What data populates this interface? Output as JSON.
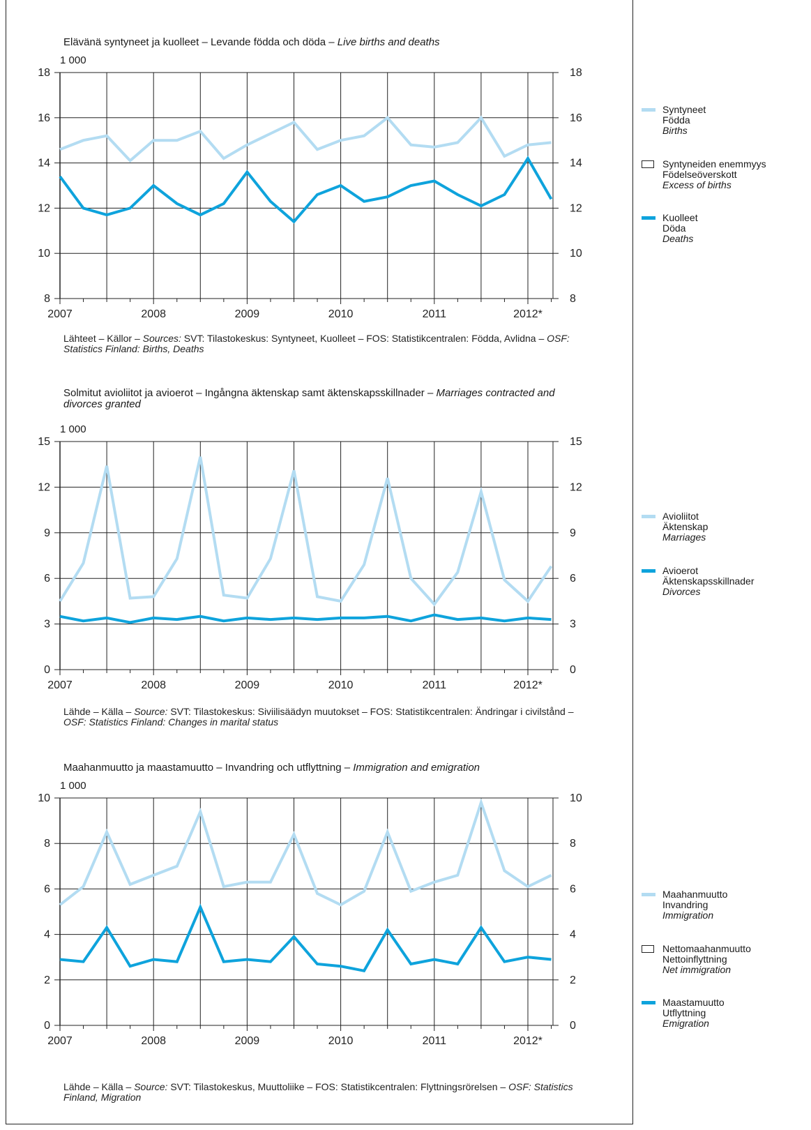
{
  "colors": {
    "light": "#b3dcf2",
    "dark": "#0ea3dc"
  },
  "x_tick_labels": [
    "2007",
    "2008",
    "2009",
    "2010",
    "2011",
    "2012*"
  ],
  "panels": [
    {
      "title_plain": "Elävänä syntyneet ja kuolleet – Levande födda och döda – ",
      "title_italic": "Live births and deaths",
      "unit": "1 000",
      "source_plain1": "Lähteet – Källor – ",
      "source_italic1": "Sources:",
      "source_plain2": " SVT: Tilastokeskus: Syntyneet, Kuolleet – FOS: Statistikcentralen: Födda, Avlidna – ",
      "source_italic2": "OSF: Statistics Finland: Births, Deaths",
      "legend": [
        {
          "kind": "line",
          "series": 0,
          "fi": "Syntyneet",
          "sv": "Födda",
          "en": "Births"
        },
        {
          "kind": "box",
          "fi": "Syntyneiden enemmyys",
          "sv": "Födelseöverskott",
          "en": "Excess of births"
        },
        {
          "kind": "line",
          "series": 1,
          "fi": "Kuolleet",
          "sv": "Döda",
          "en": "Deaths"
        }
      ]
    },
    {
      "title_plain": "Solmitut avioliitot ja avioerot – Ingångna äktenskap samt äktenskapsskillnader – ",
      "title_italic": "Marriages contracted and divorces granted",
      "unit": "1 000",
      "source_plain1": "Lähde – Källa – ",
      "source_italic1": "Source:",
      "source_plain2": " SVT: Tilastokeskus: Siviilisäädyn muutokset – FOS: Statistikcentralen: Ändringar i civilstånd – ",
      "source_italic2": "OSF: Statistics Finland: Changes in marital status",
      "legend": [
        {
          "kind": "line",
          "series": 0,
          "fi": "Avioliitot",
          "sv": "Äktenskap",
          "en": "Marriages"
        },
        {
          "kind": "line",
          "series": 1,
          "fi": "Avioerot",
          "sv": "Äktenskapsskillnader",
          "en": "Divorces"
        }
      ]
    },
    {
      "title_plain": "Maahanmuutto ja maastamuutto – Invandring och utflyttning – ",
      "title_italic": "Immigration and emigration",
      "unit": "1 000",
      "source_plain1": "Lähde – Källa – ",
      "source_italic1": "Source:",
      "source_plain2": " SVT: Tilastokeskus, Muuttoliike – FOS: Statistikcentralen: Flyttningsrörelsen – ",
      "source_italic2": "OSF: Statistics Finland, Migration",
      "legend": [
        {
          "kind": "line",
          "series": 0,
          "fi": "Maahanmuutto",
          "sv": "Invandring",
          "en": "Immigration"
        },
        {
          "kind": "box",
          "fi": "Nettomaahanmuutto",
          "sv": "Nettoinflyttning",
          "en": "Net immigration"
        },
        {
          "kind": "line",
          "series": 1,
          "fi": "Maastamuutto",
          "sv": "Utflyttning",
          "en": "Emigration"
        }
      ]
    }
  ],
  "chart_data": [
    {
      "type": "line",
      "x": [
        "2007 Q1",
        "2007 Q2",
        "2007 Q3",
        "2007 Q4",
        "2008 Q1",
        "2008 Q2",
        "2008 Q3",
        "2008 Q4",
        "2009 Q1",
        "2009 Q2",
        "2009 Q3",
        "2009 Q4",
        "2010 Q1",
        "2010 Q2",
        "2010 Q3",
        "2010 Q4",
        "2011 Q1",
        "2011 Q2",
        "2011 Q3",
        "2011 Q4",
        "2012 Q1",
        "2012 Q2"
      ],
      "ylim": [
        8,
        18
      ],
      "yticks": [
        8,
        10,
        12,
        14,
        16,
        18
      ],
      "series": [
        {
          "name": "Syntyneet",
          "values": [
            14.6,
            15.0,
            15.2,
            14.1,
            15.0,
            15.0,
            15.4,
            14.2,
            14.8,
            15.3,
            15.8,
            14.6,
            15.0,
            15.2,
            16.0,
            14.8,
            14.7,
            14.9,
            16.0,
            14.3,
            14.8,
            14.9
          ]
        },
        {
          "name": "Kuolleet",
          "values": [
            13.4,
            12.0,
            11.7,
            12.0,
            13.0,
            12.2,
            11.7,
            12.2,
            13.6,
            12.3,
            11.4,
            12.6,
            13.0,
            12.3,
            12.5,
            13.0,
            13.2,
            12.6,
            12.1,
            12.6,
            14.2,
            12.4
          ]
        }
      ]
    },
    {
      "type": "line",
      "x": [
        "2007 Q1",
        "2007 Q2",
        "2007 Q3",
        "2007 Q4",
        "2008 Q1",
        "2008 Q2",
        "2008 Q3",
        "2008 Q4",
        "2009 Q1",
        "2009 Q2",
        "2009 Q3",
        "2009 Q4",
        "2010 Q1",
        "2010 Q2",
        "2010 Q3",
        "2010 Q4",
        "2011 Q1",
        "2011 Q2",
        "2011 Q3",
        "2011 Q4",
        "2012 Q1",
        "2012 Q2"
      ],
      "ylim": [
        0,
        15
      ],
      "yticks": [
        0,
        3,
        6,
        9,
        12,
        15
      ],
      "series": [
        {
          "name": "Avioliitot",
          "values": [
            4.5,
            7.0,
            13.4,
            4.7,
            4.8,
            7.3,
            14.0,
            4.9,
            4.7,
            7.3,
            13.1,
            4.8,
            4.5,
            6.9,
            12.6,
            6.0,
            4.3,
            6.4,
            11.7,
            5.9,
            4.5,
            6.8
          ]
        },
        {
          "name": "Avioerot",
          "values": [
            3.5,
            3.2,
            3.4,
            3.1,
            3.4,
            3.3,
            3.5,
            3.2,
            3.4,
            3.3,
            3.4,
            3.3,
            3.4,
            3.4,
            3.5,
            3.2,
            3.6,
            3.3,
            3.4,
            3.2,
            3.4,
            3.3
          ]
        }
      ]
    },
    {
      "type": "line",
      "x": [
        "2007 Q1",
        "2007 Q2",
        "2007 Q3",
        "2007 Q4",
        "2008 Q1",
        "2008 Q2",
        "2008 Q3",
        "2008 Q4",
        "2009 Q1",
        "2009 Q2",
        "2009 Q3",
        "2009 Q4",
        "2010 Q1",
        "2010 Q2",
        "2010 Q3",
        "2010 Q4",
        "2011 Q1",
        "2011 Q2",
        "2011 Q3",
        "2011 Q4",
        "2012 Q1",
        "2012 Q2"
      ],
      "ylim": [
        0,
        10
      ],
      "yticks": [
        0,
        2,
        4,
        6,
        8,
        10
      ],
      "series": [
        {
          "name": "Maahanmuutto",
          "values": [
            5.3,
            6.1,
            8.5,
            6.2,
            6.6,
            7.0,
            9.4,
            6.1,
            6.3,
            6.3,
            8.4,
            5.8,
            5.3,
            5.9,
            8.5,
            5.9,
            6.3,
            6.6,
            9.8,
            6.8,
            6.1,
            6.6
          ]
        },
        {
          "name": "Maastamuutto",
          "values": [
            2.9,
            2.8,
            4.3,
            2.6,
            2.9,
            2.8,
            5.2,
            2.8,
            2.9,
            2.8,
            3.9,
            2.7,
            2.6,
            2.4,
            4.2,
            2.7,
            2.9,
            2.7,
            4.3,
            2.8,
            3.0,
            2.9
          ]
        }
      ]
    }
  ]
}
